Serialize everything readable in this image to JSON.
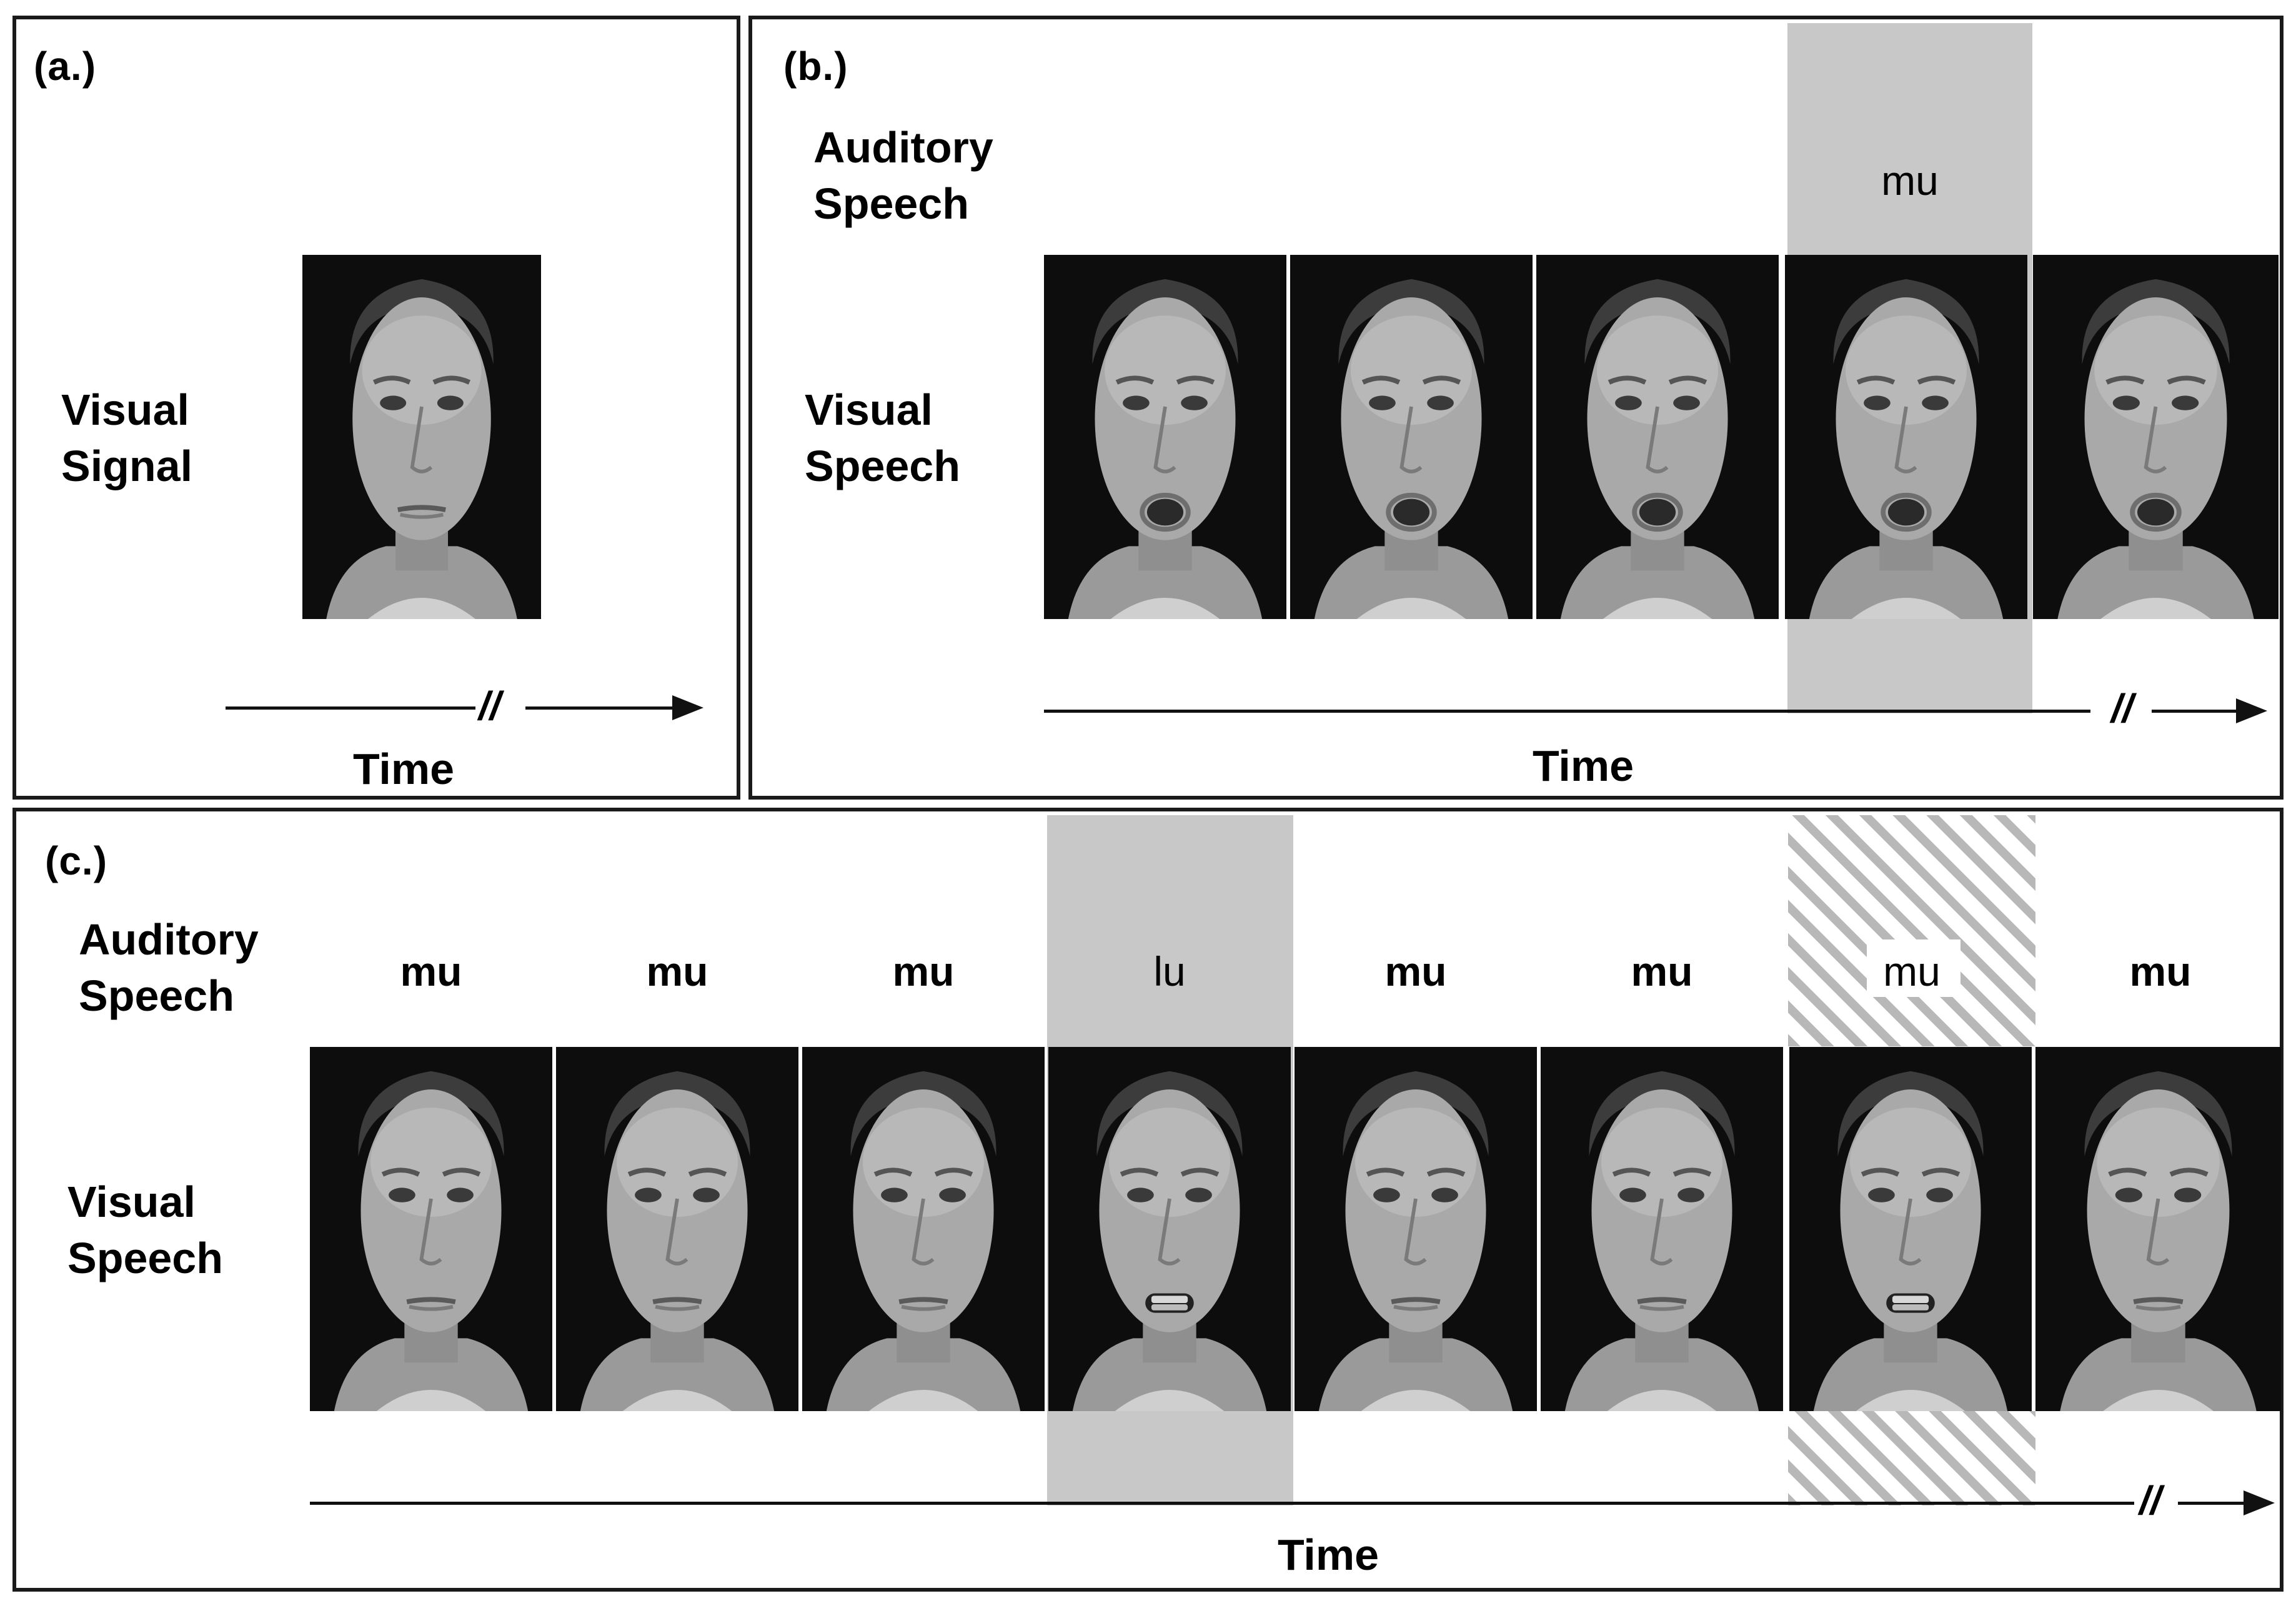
{
  "panel_a": {
    "label": "(a.)",
    "row_label_line1": "Visual",
    "row_label_line2": "Signal",
    "break_mark": "//",
    "axis_label": "Time"
  },
  "panel_b": {
    "label": "(b.)",
    "auditory_line1": "Auditory",
    "auditory_line2": "Speech",
    "visual_line1": "Visual",
    "visual_line2": "Speech",
    "syllables": [
      "",
      "",
      "",
      "mu",
      ""
    ],
    "highlight_index": 3,
    "break_mark": "//",
    "axis_label": "Time"
  },
  "panel_c": {
    "label": "(c.)",
    "auditory_line1": "Auditory",
    "auditory_line2": "Speech",
    "visual_line1": "Visual",
    "visual_line2": "Speech",
    "syllables": [
      "mu",
      "mu",
      "mu",
      "lu",
      "mu",
      "mu",
      "mu",
      "mu"
    ],
    "shaded_index": 3,
    "hatched_index": 6,
    "break_mark": "//",
    "axis_label": "Time"
  },
  "colors": {
    "shade": "#c8c8c8",
    "hatch": "#b8b8b8",
    "frame_bg": "#0d0d0d"
  }
}
